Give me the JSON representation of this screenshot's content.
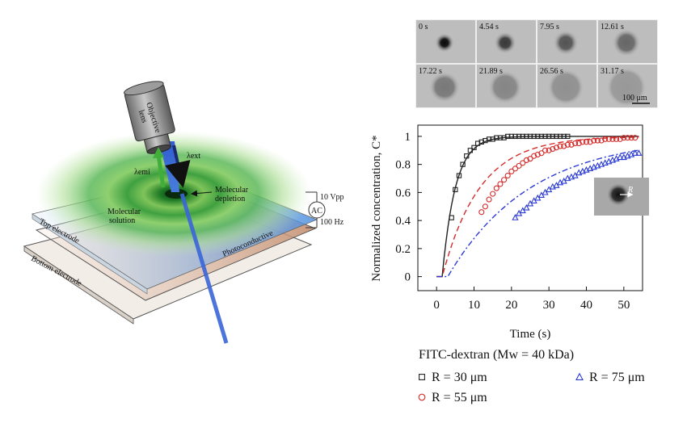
{
  "schematic": {
    "objective_label_line1": "Objective",
    "objective_label_line2": "lens",
    "lambda_ext": "λext",
    "lambda_emi": "λemi",
    "molecular_depletion_line1": "Molecular",
    "molecular_depletion_line2": "depletion",
    "molecular_solution_line1": "Molecular",
    "molecular_solution_line2": "solution",
    "voltage": "10 Vpp",
    "ac": "AC",
    "frequency": "100 Hz",
    "top_electrode": "Top electrode",
    "bottom_electrode": "Bottom electrode",
    "photoconductive": "Photoconductive"
  },
  "image_strip": {
    "times": [
      "0 s",
      "4.54 s",
      "7.95 s",
      "12.61 s",
      "17.22 s",
      "21.89 s",
      "26.56 s",
      "31.17 s"
    ],
    "spot_darkness": [
      0.95,
      0.7,
      0.55,
      0.45,
      0.35,
      0.28,
      0.22,
      0.18
    ],
    "scalebar": "100 μm"
  },
  "inset_label": "R",
  "chart_data": {
    "type": "scatter",
    "xlabel": "Time (s)",
    "ylabel": "Normalized concentration, C*",
    "xlim": [
      -5,
      55
    ],
    "ylim": [
      -0.1,
      1.08
    ],
    "xticks": [
      0,
      10,
      20,
      30,
      40,
      50
    ],
    "yticks": [
      0,
      0.2,
      0.4,
      0.6,
      0.8,
      1
    ],
    "legend_title": "FITC-dextran (Mw = 40 kDa)",
    "series": [
      {
        "name": "R = 30 μm",
        "marker": "square",
        "color": "#222222",
        "line": "solid",
        "fit": {
          "t0": 1.5,
          "tau": 3.5
        },
        "x": [
          4,
          5,
          6,
          7,
          8,
          9,
          10,
          11,
          12,
          13,
          14,
          15,
          16,
          17,
          18,
          19,
          20,
          21,
          22,
          23,
          24,
          25,
          26,
          27,
          28,
          29,
          30,
          31,
          32,
          33,
          34,
          35
        ],
        "y": [
          0.42,
          0.62,
          0.72,
          0.8,
          0.86,
          0.9,
          0.92,
          0.95,
          0.96,
          0.97,
          0.98,
          0.98,
          0.99,
          0.99,
          0.99,
          1.0,
          1.0,
          1.0,
          1.0,
          1.0,
          1.0,
          1.0,
          1.0,
          1.0,
          1.0,
          1.0,
          1.0,
          1.0,
          1.0,
          1.0,
          1.0,
          1.0
        ]
      },
      {
        "name": "R = 55 μm",
        "marker": "circle",
        "color": "#d42a2a",
        "line": "dashed",
        "fit": {
          "t0": 1.5,
          "tau": 10
        },
        "x": [
          12,
          13,
          14,
          15,
          16,
          17,
          18,
          19,
          20,
          21,
          22,
          23,
          24,
          25,
          26,
          27,
          28,
          29,
          30,
          31,
          32,
          33,
          34,
          35,
          36,
          37,
          38,
          39,
          40,
          41,
          42,
          43,
          44,
          45,
          46,
          47,
          48,
          49,
          50,
          51,
          52,
          53
        ],
        "y": [
          0.46,
          0.5,
          0.55,
          0.59,
          0.63,
          0.66,
          0.69,
          0.72,
          0.75,
          0.77,
          0.79,
          0.81,
          0.83,
          0.84,
          0.86,
          0.87,
          0.88,
          0.9,
          0.9,
          0.91,
          0.92,
          0.93,
          0.93,
          0.94,
          0.94,
          0.95,
          0.95,
          0.96,
          0.96,
          0.96,
          0.97,
          0.97,
          0.97,
          0.98,
          0.98,
          0.98,
          0.98,
          0.98,
          0.99,
          0.99,
          0.99,
          0.99
        ]
      },
      {
        "name": "R = 75 μm",
        "marker": "triangle",
        "color": "#2a3ad4",
        "line": "dashdot",
        "fit": {
          "t0": 3,
          "tau": 22
        },
        "x": [
          21,
          22,
          23,
          24,
          25,
          26,
          27,
          28,
          29,
          30,
          31,
          32,
          33,
          34,
          35,
          36,
          37,
          38,
          39,
          40,
          41,
          42,
          43,
          44,
          45,
          46,
          47,
          48,
          49,
          50,
          51,
          52,
          53,
          54
        ],
        "y": [
          0.42,
          0.45,
          0.47,
          0.49,
          0.52,
          0.54,
          0.56,
          0.58,
          0.6,
          0.62,
          0.64,
          0.65,
          0.67,
          0.68,
          0.7,
          0.71,
          0.72,
          0.74,
          0.75,
          0.76,
          0.77,
          0.78,
          0.79,
          0.8,
          0.81,
          0.82,
          0.83,
          0.84,
          0.85,
          0.85,
          0.86,
          0.87,
          0.88,
          0.88
        ]
      }
    ]
  }
}
